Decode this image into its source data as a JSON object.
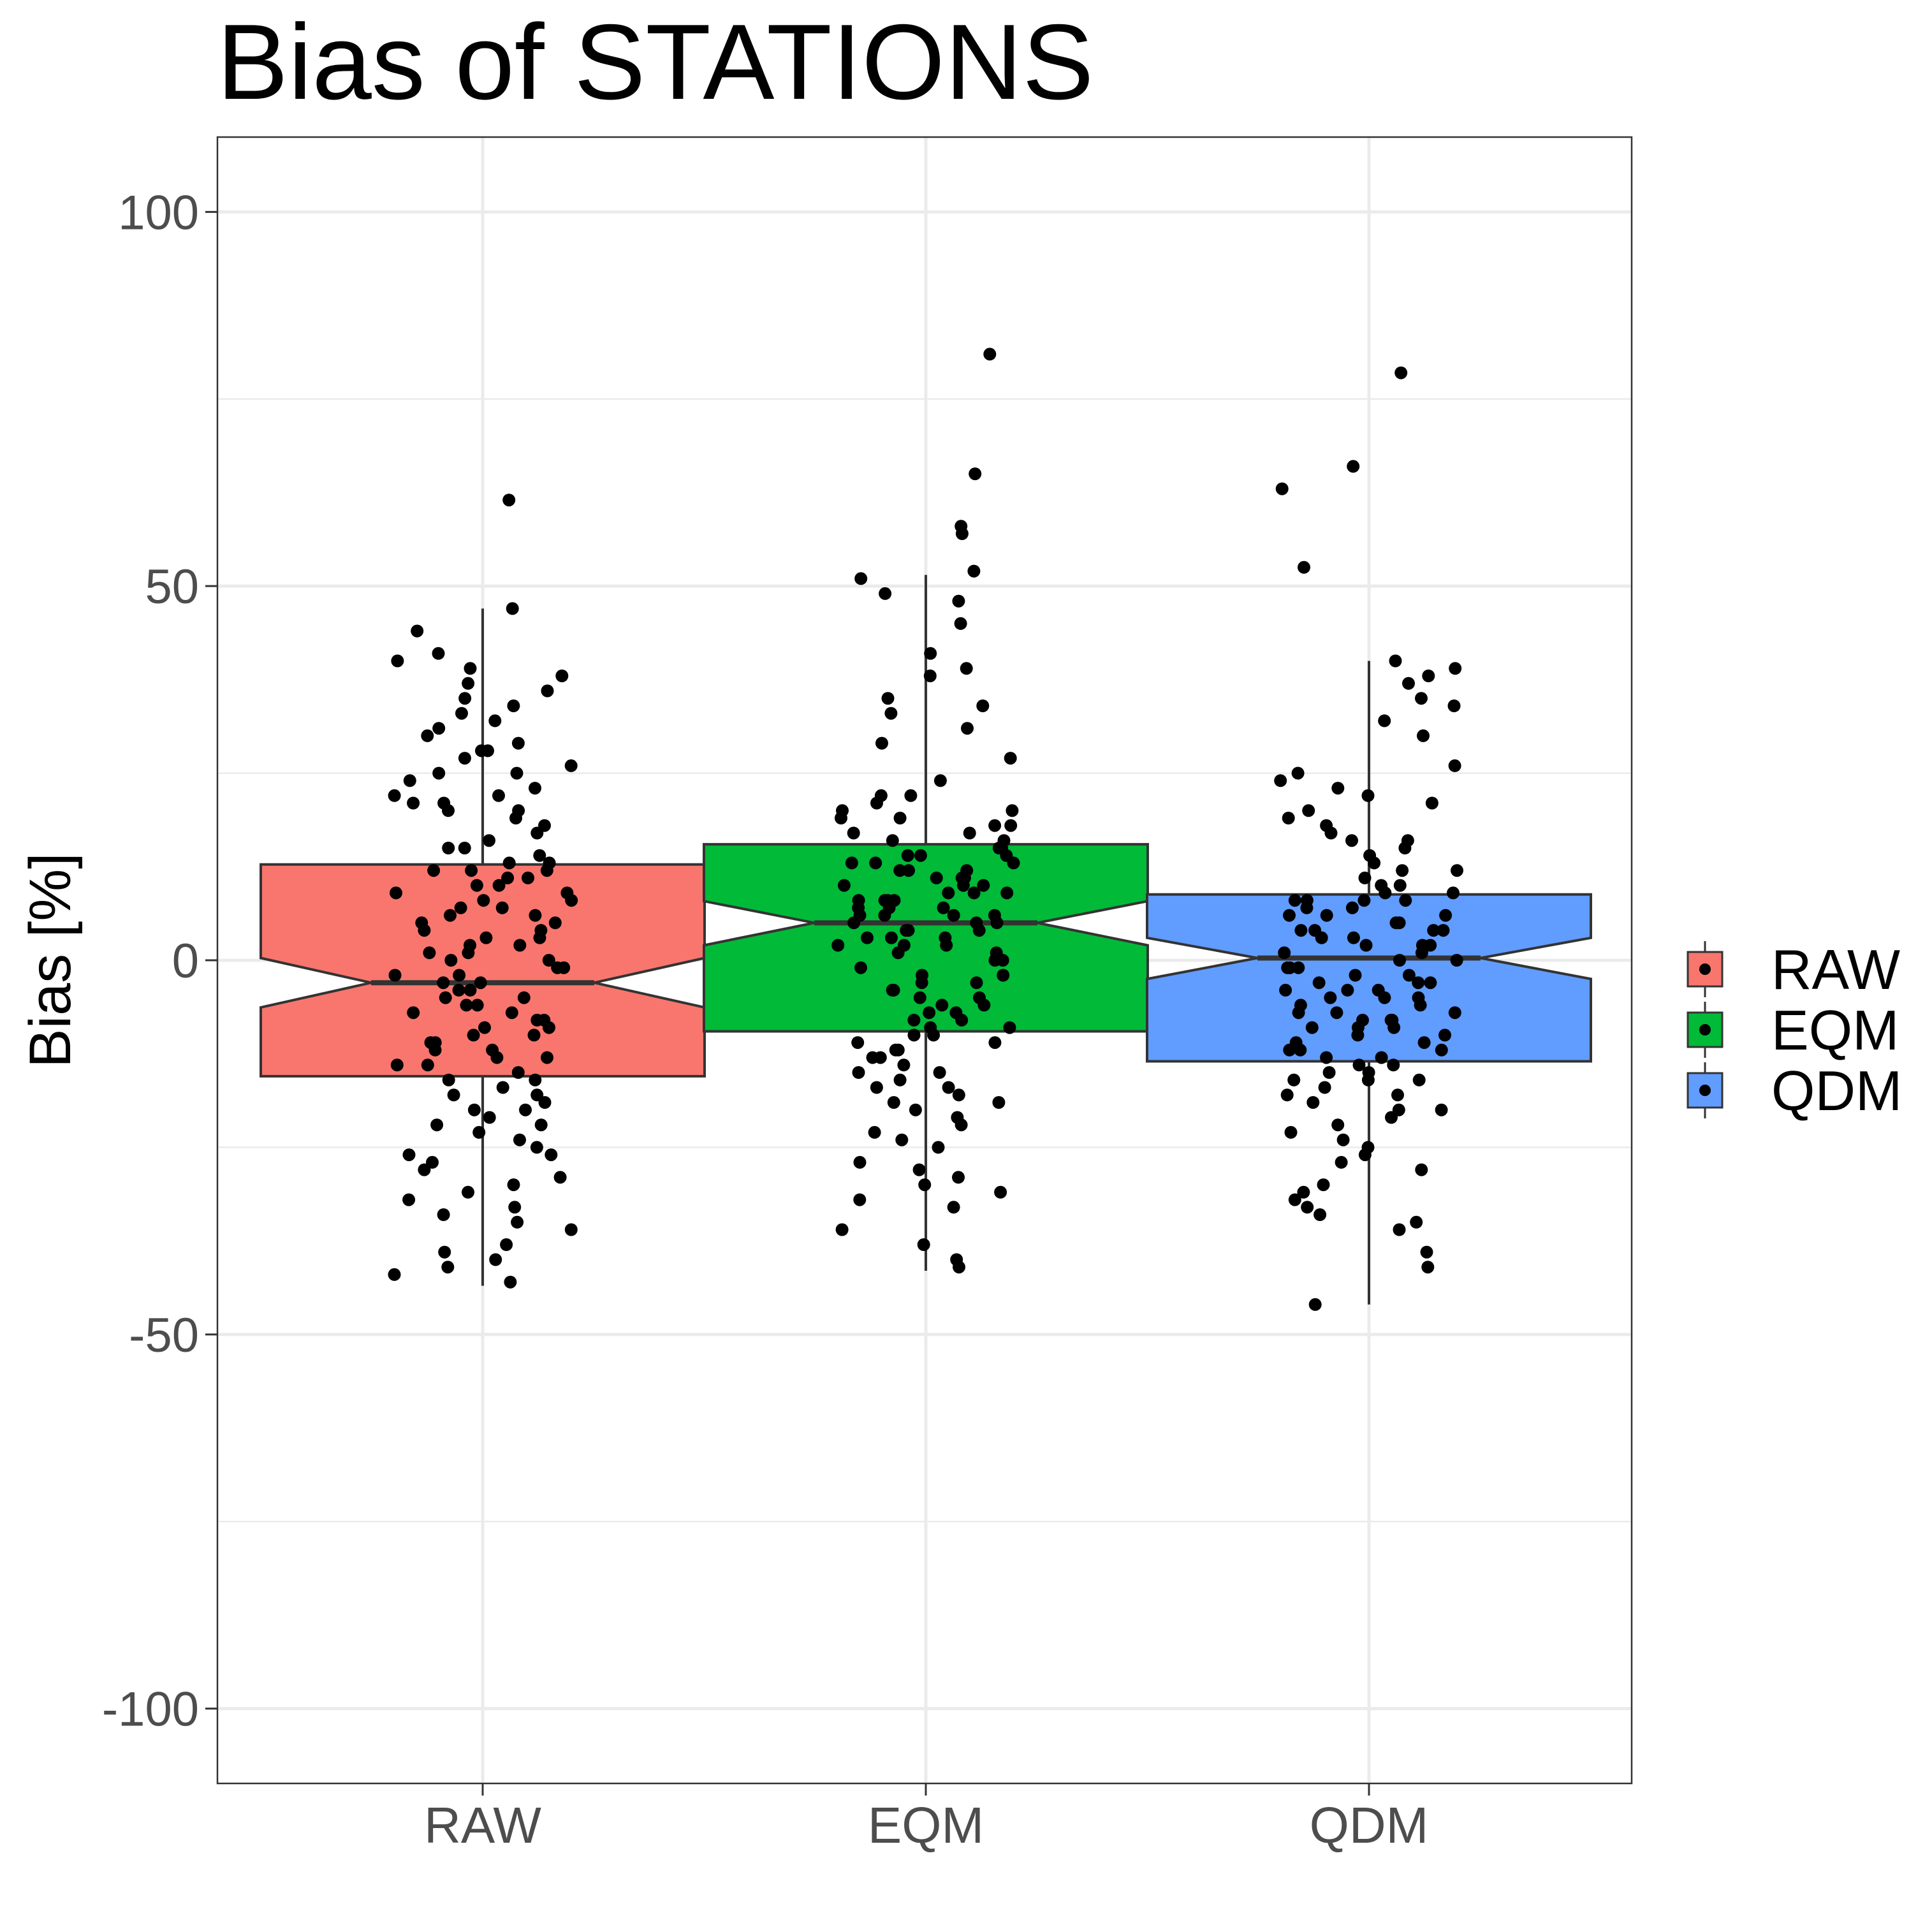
{
  "chart_data": {
    "type": "box",
    "title": "Bias of STATIONS",
    "xlabel": "",
    "ylabel": "Bias [%]",
    "ylim": [
      -110,
      110
    ],
    "yticks": [
      -100,
      -50,
      0,
      50,
      100
    ],
    "ytick_labels": [
      "-100",
      "-50",
      "0",
      "50",
      "100"
    ],
    "grid": true,
    "notched": true,
    "jittered_points": true,
    "legend": {
      "position": "right",
      "entries": [
        "RAW",
        "EQM",
        "QDM"
      ]
    },
    "categories": [
      "RAW",
      "EQM",
      "QDM"
    ],
    "series": [
      {
        "name": "RAW",
        "color": "#F8766D",
        "whisker_low": -43.5,
        "q1": -15.5,
        "median": -3,
        "q3": 12.8,
        "whisker_high": 47,
        "notch_low": -6.3,
        "notch_high": 0.3,
        "outliers": [
          61.5
        ],
        "points": [
          -43,
          -41,
          -38,
          -36,
          -33,
          -30,
          -28,
          -26,
          -24,
          -22,
          -20,
          -18,
          -16,
          -14,
          -13,
          -12,
          -11,
          -10,
          -9,
          -8,
          -7,
          -6,
          -5,
          -4,
          -3,
          -2,
          -1,
          0,
          1,
          2,
          3,
          4,
          5,
          6,
          7,
          8,
          9,
          10,
          11,
          12,
          12,
          13,
          14,
          15,
          16,
          18,
          20,
          21,
          22,
          24,
          25,
          27,
          29,
          31,
          33,
          35,
          37,
          38,
          39,
          40,
          41,
          44,
          47,
          -42,
          -39,
          -34,
          -31,
          -27,
          -25,
          -23,
          -21,
          -19,
          -17,
          -15,
          -14,
          -12,
          -10,
          -9,
          -7,
          -5,
          -3,
          -1,
          1,
          3,
          5,
          7,
          9,
          11,
          13,
          15,
          17,
          19,
          21,
          23,
          26,
          28,
          30,
          32,
          34,
          36,
          -40,
          -35,
          -32,
          -29,
          -26,
          -22,
          -20,
          -18,
          -16,
          -13,
          -11,
          -8,
          -6,
          -4,
          -2,
          0,
          2,
          4,
          6,
          8,
          10,
          12,
          20,
          22,
          25,
          28
        ]
      },
      {
        "name": "EQM",
        "color": "#00BA38",
        "whisker_low": -41.5,
        "q1": -9.5,
        "median": 5,
        "q3": 15.5,
        "whisker_high": 51.5,
        "notch_low": 2,
        "notch_high": 7.9,
        "outliers": [
          81,
          65,
          58,
          57
        ],
        "points": [
          -41,
          -40,
          -38,
          -33,
          -31,
          -29,
          -27,
          -25,
          -23,
          -21,
          -20,
          -19,
          -18,
          -16,
          -14,
          -13,
          -12,
          -11,
          -10,
          -9,
          -8,
          -7,
          -6,
          -5,
          -4,
          -3,
          -2,
          -1,
          0,
          1,
          2,
          3,
          4,
          5,
          6,
          7,
          8,
          9,
          10,
          11,
          12,
          13,
          14,
          15,
          16,
          17,
          18,
          19,
          20,
          21,
          22,
          24,
          27,
          29,
          31,
          33,
          34,
          35,
          38,
          39,
          41,
          45,
          48,
          49,
          51,
          52,
          -36,
          -32,
          -30,
          -28,
          -24,
          -22,
          -17,
          -15,
          -12,
          -10,
          -8,
          -6,
          -4,
          -2,
          0,
          2,
          4,
          6,
          8,
          10,
          12,
          14,
          16,
          18,
          20,
          22,
          2,
          3,
          5,
          7,
          9,
          11,
          13,
          -3,
          -5,
          -7,
          1,
          3,
          5,
          7,
          9,
          11,
          13,
          15,
          17,
          19,
          6,
          8,
          10,
          12,
          14,
          -9,
          -11,
          -13,
          -15,
          -17,
          -19,
          4,
          6,
          8
        ]
      },
      {
        "name": "QDM",
        "color": "#619CFF",
        "whisker_low": -46,
        "q1": -13.5,
        "median": 0.3,
        "q3": 8.8,
        "whisker_high": 40,
        "notch_low": -2.5,
        "notch_high": 3,
        "outliers": [
          78.5,
          66,
          63,
          52.5
        ],
        "points": [
          -46,
          -41,
          -39,
          -35,
          -34,
          -33,
          -32,
          -30,
          -27,
          -26,
          -25,
          -23,
          -22,
          -21,
          -20,
          -19,
          -18,
          -17,
          -16,
          -15,
          -14,
          -13,
          -12,
          -11,
          -10,
          -9,
          -8,
          -7,
          -6,
          -5,
          -4,
          -3,
          -2,
          -1,
          0,
          1,
          2,
          3,
          4,
          5,
          6,
          7,
          8,
          9,
          10,
          11,
          12,
          13,
          14,
          15,
          16,
          17,
          18,
          19,
          20,
          21,
          22,
          23,
          24,
          25,
          26,
          30,
          32,
          34,
          35,
          37,
          38,
          39,
          40,
          -36,
          -31,
          -28,
          -24,
          -20,
          -16,
          -12,
          -8,
          -4,
          0,
          4,
          8,
          12,
          16,
          -14,
          -12,
          -10,
          -9,
          -8,
          -7,
          -6,
          -5,
          -4,
          -3,
          -2,
          -1,
          1,
          2,
          3,
          4,
          5,
          6,
          7,
          8,
          9,
          10,
          -18,
          -16,
          -15,
          -13,
          -11,
          -9,
          -7,
          -5,
          -3,
          -1,
          2,
          4,
          6,
          8
        ]
      }
    ]
  }
}
